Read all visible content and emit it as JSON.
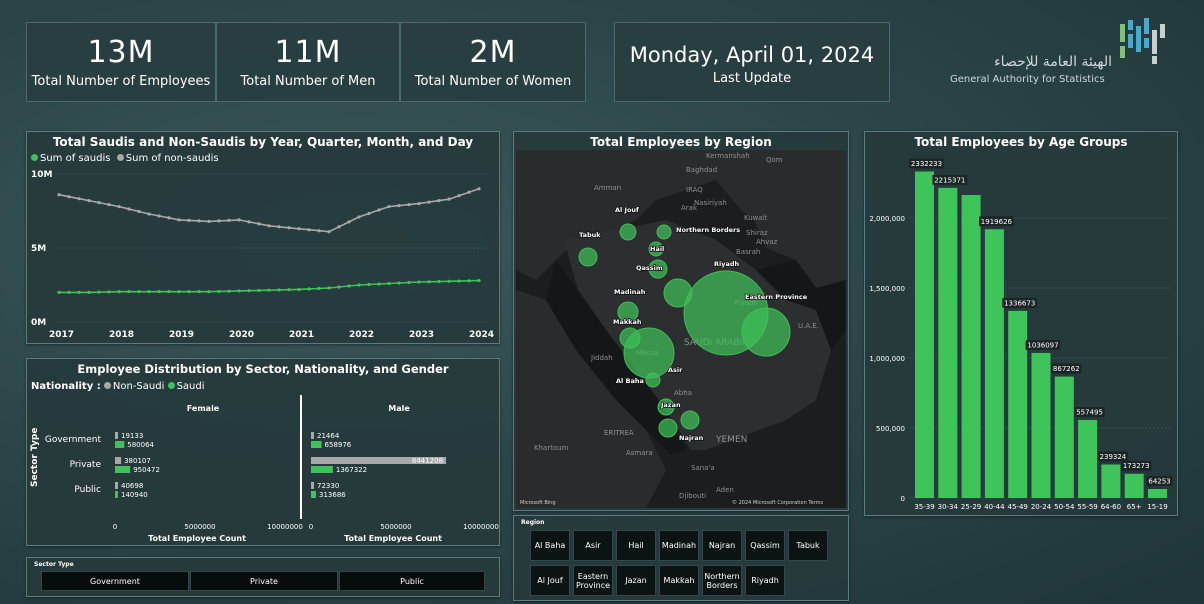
{
  "kpis": [
    {
      "value": "13M",
      "label": "Total Number of Employees"
    },
    {
      "value": "11M",
      "label": "Total Number of Men"
    },
    {
      "value": "2M",
      "label": "Total Number of Women"
    }
  ],
  "last_update": {
    "date": "Monday, April 01, 2024",
    "label": "Last Update"
  },
  "logo": {
    "arabic": "الهيئة العامة للإحصاء",
    "english": "General Authority for Statistics"
  },
  "colors": {
    "green": "#3ec25a",
    "grey": "#a8a8a8",
    "panel": "#263a3c"
  },
  "line_chart": {
    "title": "Total Saudis and Non-Saudis by Year, Quarter, Month, and Day",
    "legend": [
      "Sum of saudis",
      "Sum of non-saudis"
    ],
    "y_ticks": [
      "10M",
      "5M",
      "0M"
    ],
    "x_ticks": [
      "2017",
      "2018",
      "2019",
      "2020",
      "2021",
      "2022",
      "2023",
      "2024"
    ]
  },
  "sector_chart": {
    "title": "Employee Distribution by Sector, Nationality, and Gender",
    "nationality_label": "Nationality :",
    "legend": [
      "Non-Saudi",
      "Saudi"
    ],
    "y_axis_title": "Sector Type",
    "categories": [
      "Government",
      "Private",
      "Public"
    ],
    "panels": [
      "Female",
      "Male"
    ],
    "x_ticks": [
      "0",
      "5000000",
      "10000000"
    ],
    "x_axis_title": "Total Employee Count"
  },
  "map": {
    "title": "Total Employees by Region",
    "region_labels": [
      "Al Jouf",
      "Northern Borders",
      "Tabuk",
      "Hail",
      "Qassim",
      "Riyadh",
      "Madinah",
      "Eastern Province",
      "Makkah",
      "Al Baha",
      "Asir",
      "Jazan",
      "Najran"
    ],
    "geo_labels": [
      "Kermanshah",
      "Qom",
      "Baghdad",
      "Amman",
      "IRAQ",
      "Arak",
      "Nasiriyah",
      "Kuwait",
      "Ahvaz",
      "Shiraz",
      "Basrah",
      "Riyadh",
      "U.A.E.",
      "SAUDI ARABIA",
      "Jiddah",
      "Mecca",
      "Abha",
      "ERITREA",
      "YEMEN",
      "Khartoum",
      "Asmara",
      "Sana'a",
      "Aden",
      "Djibouti"
    ],
    "attribution_left": "Microsoft Bing",
    "attribution_right": "© 2024 Microsoft Corporation  Terms"
  },
  "region_slicer": {
    "title": "Region",
    "row1": [
      "Al Baha",
      "Asir",
      "Hail",
      "Madinah",
      "Najran",
      "Qassim",
      "Tabuk"
    ],
    "row2": [
      "Al Jouf",
      "Eastern Province",
      "Jazan",
      "Makkah",
      "Northern Borders",
      "Riyadh"
    ]
  },
  "sector_slicer": {
    "title": "Sector Type",
    "options": [
      "Government",
      "Private",
      "Public"
    ]
  },
  "age_chart": {
    "title": "Total Employees by Age Groups",
    "y_ticks": [
      "2,000,000",
      "1,500,000",
      "1,000,000",
      "500,000",
      "0"
    ]
  },
  "chart_data": [
    {
      "type": "line",
      "title": "Total Saudis and Non-Saudis by Year, Quarter, Month, and Day",
      "x": [
        "2017",
        "2017Q3",
        "2018",
        "2018Q3",
        "2019",
        "2019Q3",
        "2020",
        "2020Q3",
        "2021",
        "2021Q3",
        "2022",
        "2022Q3",
        "2023",
        "2023Q3",
        "2024"
      ],
      "series": [
        {
          "name": "Sum of saudis",
          "values": [
            2.0,
            2.0,
            2.05,
            2.05,
            2.05,
            2.05,
            2.1,
            2.15,
            2.2,
            2.3,
            2.5,
            2.6,
            2.7,
            2.75,
            2.8
          ]
        },
        {
          "name": "Sum of non-saudis",
          "values": [
            8.6,
            8.2,
            7.8,
            7.3,
            6.9,
            6.8,
            6.9,
            6.5,
            6.3,
            6.1,
            7.1,
            7.8,
            8.0,
            8.3,
            9.0
          ]
        }
      ],
      "ylabel": "",
      "ylim": [
        0,
        10
      ],
      "unit": "M"
    },
    {
      "type": "bar",
      "title": "Employee Distribution by Sector, Nationality, and Gender",
      "categories": [
        "Government",
        "Private",
        "Public"
      ],
      "panels": [
        {
          "name": "Female",
          "series": [
            {
              "name": "Non-Saudi",
              "values": [
                19133,
                380107,
                40698
              ]
            },
            {
              "name": "Saudi",
              "values": [
                580064,
                950472,
                140940
              ]
            }
          ]
        },
        {
          "name": "Male",
          "series": [
            {
              "name": "Non-Saudi",
              "values": [
                21464,
                8441208,
                72330
              ]
            },
            {
              "name": "Saudi",
              "values": [
                658976,
                1367322,
                313686
              ]
            }
          ]
        }
      ],
      "xlim": [
        0,
        10000000
      ]
    },
    {
      "type": "bar",
      "title": "Total Employees by Age Groups",
      "categories": [
        "35-39",
        "30-34",
        "25-29",
        "40-44",
        "45-49",
        "20-24",
        "50-54",
        "55-59",
        "64-60",
        "65+",
        "15-19"
      ],
      "values": [
        2332233,
        2215371,
        2164000,
        1919626,
        1336673,
        1036097,
        867262,
        557495,
        239324,
        173273,
        64253
      ],
      "data_labels": [
        "2332233",
        "2215371",
        "",
        "1919626",
        "1336673",
        "1036097",
        "867262",
        "557495",
        "239324",
        "173273",
        "64253"
      ],
      "ylim": [
        0,
        2400000
      ]
    }
  ]
}
